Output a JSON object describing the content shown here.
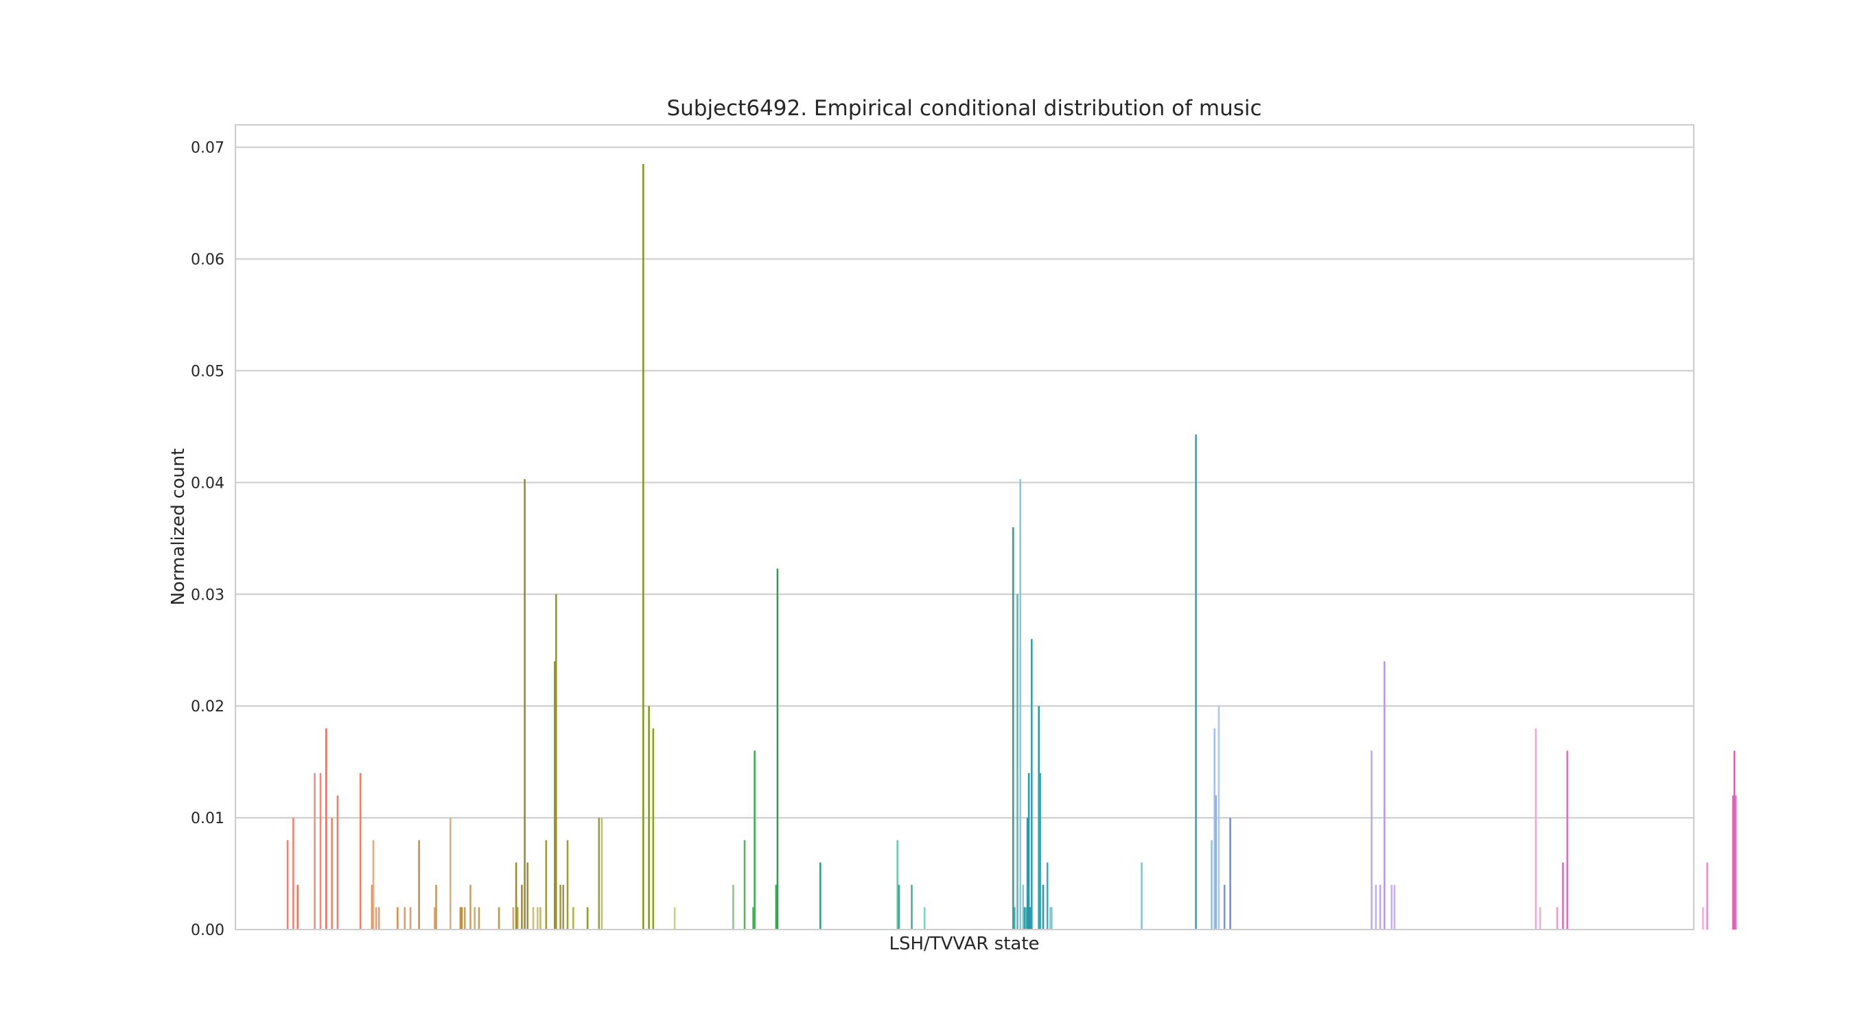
{
  "chart_data": {
    "type": "bar",
    "title": "Subject6492. Empirical conditional distribution of music",
    "xlabel": "LSH/TVVAR state",
    "ylabel": "Normalized count",
    "ylim": [
      0,
      0.072
    ],
    "xlim": [
      0,
      1000
    ],
    "yticks": [
      0.0,
      0.01,
      0.02,
      0.03,
      0.04,
      0.05,
      0.06,
      0.07
    ],
    "yticklabels": [
      "0.00",
      "0.01",
      "0.02",
      "0.03",
      "0.04",
      "0.05",
      "0.06",
      "0.07"
    ],
    "grid": true,
    "legend": "none",
    "x": [
      26,
      30,
      33,
      45,
      49,
      53,
      57,
      61,
      77,
      85,
      86,
      88,
      90,
      103,
      108,
      112,
      118,
      129,
      130,
      140,
      147,
      148,
      150,
      154,
      157,
      160,
      174,
      184,
      186,
      187,
      190,
      192,
      194,
      198,
      201,
      203,
      207,
      213,
      214,
      217,
      219,
      222,
      226,
      236,
      244,
      246,
      275,
      279,
      282,
      297,
      338,
      346,
      352,
      353,
      368,
      369,
      399,
      453,
      454,
      463,
      472,
      534,
      535,
      537,
      539,
      541,
      542,
      543,
      544,
      545,
      546,
      547,
      552,
      553,
      555,
      558,
      560,
      561,
      624,
      662,
      673,
      675,
      676,
      678,
      682,
      686,
      785,
      788,
      791,
      794,
      799,
      801,
      900,
      903,
      915,
      919,
      922,
      1017,
      1020,
      1038,
      1039,
      1040
    ],
    "y": [
      0.008,
      0.01,
      0.004,
      0.014,
      0.014,
      0.018,
      0.01,
      0.012,
      0.014,
      0.004,
      0.008,
      0.002,
      0.002,
      0.002,
      0.002,
      0.002,
      0.008,
      0.002,
      0.004,
      0.01,
      0.002,
      0.002,
      0.002,
      0.004,
      0.002,
      0.002,
      0.002,
      0.002,
      0.006,
      0.002,
      0.004,
      0.0403,
      0.006,
      0.002,
      0.002,
      0.002,
      0.008,
      0.024,
      0.03,
      0.004,
      0.004,
      0.008,
      0.002,
      0.002,
      0.01,
      0.01,
      0.0685,
      0.02,
      0.018,
      0.002,
      0.004,
      0.008,
      0.002,
      0.016,
      0.004,
      0.0323,
      0.006,
      0.008,
      0.004,
      0.004,
      0.002,
      0.036,
      0.002,
      0.03,
      0.0403,
      0.004,
      0.002,
      0.002,
      0.01,
      0.014,
      0.002,
      0.026,
      0.02,
      0.014,
      0.004,
      0.006,
      0.002,
      0.002,
      0.006,
      0.0443,
      0.008,
      0.018,
      0.012,
      0.02,
      0.004,
      0.01,
      0.016,
      0.004,
      0.004,
      0.024,
      0.004,
      0.004,
      0.018,
      0.002,
      0.002,
      0.006,
      0.016,
      0.002,
      0.006,
      0.012,
      0.016,
      0.012
    ],
    "colors": [
      "#f08070",
      "#f08070",
      "#e8785f",
      "#f58f85",
      "#f08878",
      "#e87060",
      "#e8876f",
      "#e88070",
      "#e88060",
      "#e0905a",
      "#f0a880",
      "#e8a070",
      "#e0a070",
      "#d89050",
      "#d8a070",
      "#d8a078",
      "#c89040",
      "#d8a870",
      "#c89860",
      "#d8b078",
      "#c09040",
      "#b89040",
      "#c8a060",
      "#c8a068",
      "#c8b078",
      "#c0a060",
      "#b89850",
      "#c8b078",
      "#a08a30",
      "#b09a40",
      "#a08a30",
      "#9a8a30",
      "#a09030",
      "#c8c078",
      "#c8c088",
      "#c0b870",
      "#a09a30",
      "#9a9428",
      "#9a9428",
      "#a09a38",
      "#a09a38",
      "#a0a030",
      "#b0b050",
      "#909828",
      "#9aa038",
      "#c0c070",
      "#889820",
      "#80a020",
      "#8aa028",
      "#c8d088",
      "#88c888",
      "#58b060",
      "#58b060",
      "#38b050",
      "#40b050",
      "#2ea050",
      "#30a080",
      "#70c8a8",
      "#3aa888",
      "#4ab090",
      "#80d0c0",
      "#2aa0a0",
      "#40b0b0",
      "#50b8c0",
      "#88c8d8",
      "#88c8d0",
      "#2aa0a8",
      "#60b8c0",
      "#2a98a8",
      "#2a98a8",
      "#2a98a8",
      "#30a0b0",
      "#2aa0a8",
      "#40a8b0",
      "#2a98a8",
      "#40a8b8",
      "#88c8d0",
      "#88c8d0",
      "#88c0d8",
      "#3a9ec0",
      "#98c0e0",
      "#a0c0e8",
      "#90b0e0",
      "#b0c8f0",
      "#7898d8",
      "#7090d0",
      "#c0a8e8",
      "#c8b0f0",
      "#c0a8e8",
      "#b898e0",
      "#c8b0f0",
      "#c8b0f0",
      "#e8a8d8",
      "#e8b0d8",
      "#e898d0",
      "#d870b8",
      "#e070c0",
      "#f0b0d8",
      "#e890c8",
      "#e070b8",
      "#d860b0",
      "#e070c0"
    ]
  }
}
